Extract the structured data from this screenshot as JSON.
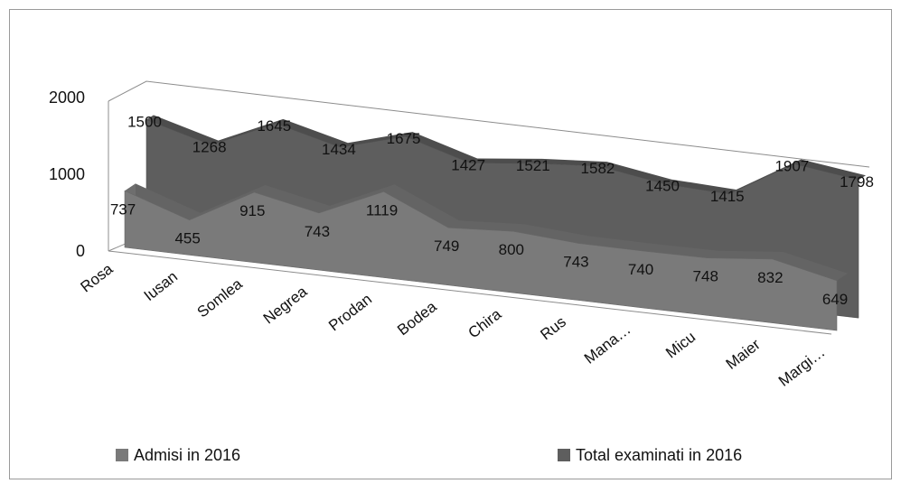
{
  "chart_data": {
    "type": "area",
    "title": "",
    "xlabel": "",
    "ylabel": "",
    "ylim": [
      0,
      2000
    ],
    "yticks": [
      "0",
      "1000",
      "2000"
    ],
    "categories": [
      "Rosa",
      "Iusan",
      "Somlea",
      "Negrea",
      "Prodan",
      "Bodea",
      "Chira",
      "Rus",
      "Mana…",
      "Micu",
      "Maier",
      "Margi…"
    ],
    "legend_position": "bottom",
    "grid": false,
    "series": [
      {
        "name": "Admisi in 2016",
        "color": "#7a7a7a",
        "values": [
          737,
          455,
          915,
          743,
          1119,
          749,
          800,
          743,
          740,
          748,
          832,
          649
        ],
        "labels": [
          "737",
          "455",
          "915",
          "743",
          "1119",
          "749",
          "800",
          "743",
          "740",
          "748",
          "832",
          "649"
        ]
      },
      {
        "name": "Total examinati  in 2016",
        "color": "#5e5e5e",
        "values": [
          1500,
          1268,
          1645,
          1434,
          1675,
          1427,
          1521,
          1582,
          1450,
          1415,
          1907,
          1798
        ],
        "labels": [
          "1500",
          "1268",
          "1645",
          "1434",
          "1675",
          "1427",
          "1521",
          "1582",
          "1450",
          "1415",
          "1907",
          "1798"
        ]
      }
    ]
  }
}
